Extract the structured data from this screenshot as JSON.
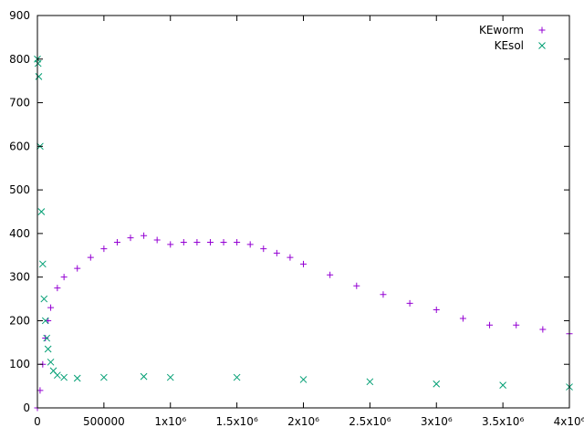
{
  "chart_data": {
    "type": "scatter",
    "title": "",
    "xlabel": "",
    "ylabel": "",
    "xlim": [
      0,
      4000000
    ],
    "ylim": [
      0,
      900
    ],
    "grid": false,
    "legend_position": "top-right",
    "x_ticks": [
      {
        "value": 0,
        "label": "0"
      },
      {
        "value": 500000,
        "label": "500000"
      },
      {
        "value": 1000000,
        "label": "1x10⁶"
      },
      {
        "value": 1500000,
        "label": "1.5x10⁶"
      },
      {
        "value": 2000000,
        "label": "2x10⁶"
      },
      {
        "value": 2500000,
        "label": "2.5x10⁶"
      },
      {
        "value": 3000000,
        "label": "3x10⁶"
      },
      {
        "value": 3500000,
        "label": "3.5x10⁶"
      },
      {
        "value": 4000000,
        "label": "4x10⁶"
      }
    ],
    "y_ticks": [
      {
        "value": 0,
        "label": "0"
      },
      {
        "value": 100,
        "label": "100"
      },
      {
        "value": 200,
        "label": "200"
      },
      {
        "value": 300,
        "label": "300"
      },
      {
        "value": 400,
        "label": "400"
      },
      {
        "value": 500,
        "label": "500"
      },
      {
        "value": 600,
        "label": "600"
      },
      {
        "value": 700,
        "label": "700"
      },
      {
        "value": 800,
        "label": "800"
      },
      {
        "value": 900,
        "label": "900"
      }
    ],
    "series": [
      {
        "name": "KEworm",
        "marker": "plus",
        "color": "#9400d3",
        "x": [
          0,
          20000,
          40000,
          60000,
          80000,
          100000,
          150000,
          200000,
          300000,
          400000,
          500000,
          600000,
          700000,
          800000,
          900000,
          1000000,
          1100000,
          1200000,
          1300000,
          1400000,
          1500000,
          1600000,
          1700000,
          1800000,
          1900000,
          2000000,
          2200000,
          2400000,
          2600000,
          2800000,
          3000000,
          3200000,
          3400000,
          3600000,
          3800000,
          4000000
        ],
        "y": [
          0,
          40,
          100,
          160,
          200,
          230,
          275,
          300,
          320,
          345,
          365,
          380,
          390,
          395,
          385,
          375,
          380,
          380,
          380,
          380,
          380,
          375,
          365,
          355,
          345,
          330,
          305,
          280,
          260,
          240,
          225,
          205,
          190,
          190,
          180,
          170
        ]
      },
      {
        "name": "KEsol",
        "marker": "cross",
        "color": "#009e73",
        "x": [
          0,
          5000,
          10000,
          20000,
          30000,
          40000,
          50000,
          60000,
          70000,
          80000,
          100000,
          120000,
          150000,
          200000,
          300000,
          500000,
          800000,
          1000000,
          1500000,
          2000000,
          2500000,
          3000000,
          3500000,
          4000000
        ],
        "y": [
          800,
          790,
          760,
          600,
          450,
          330,
          250,
          200,
          160,
          135,
          105,
          85,
          75,
          70,
          68,
          70,
          72,
          70,
          70,
          65,
          60,
          55,
          52,
          48
        ]
      }
    ]
  }
}
